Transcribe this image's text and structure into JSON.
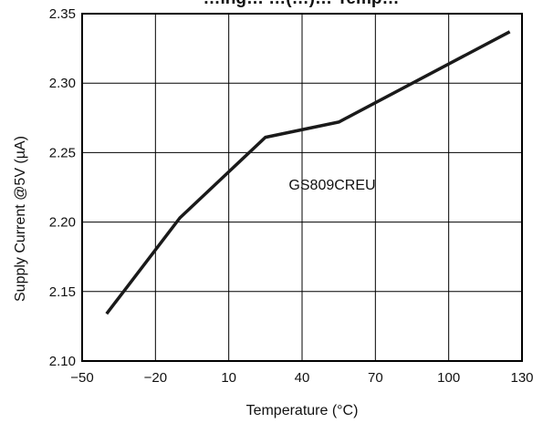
{
  "chart_data": {
    "type": "line",
    "title": "…ing…  …(…)… Temp…",
    "xlabel": "Temperature (°C)",
    "ylabel": "Supply Current @5V (µA)",
    "xlim": [
      -50,
      130
    ],
    "ylim": [
      2.1,
      2.35
    ],
    "x_ticks": [
      "−50",
      "−20",
      "10",
      "40",
      "70",
      "100",
      "130"
    ],
    "y_ticks": [
      "2.10",
      "2.15",
      "2.20",
      "2.25",
      "2.30",
      "2.35"
    ],
    "grid": true,
    "annotation": "GS809CREU",
    "series": [
      {
        "name": "GS809CREU",
        "x": [
          -40,
          -10,
          25,
          55,
          125
        ],
        "y": [
          2.134,
          2.203,
          2.261,
          2.272,
          2.337
        ]
      }
    ],
    "colors": {
      "line": "#1a1a1a",
      "grid": "#000000",
      "background": "#ffffff"
    }
  }
}
